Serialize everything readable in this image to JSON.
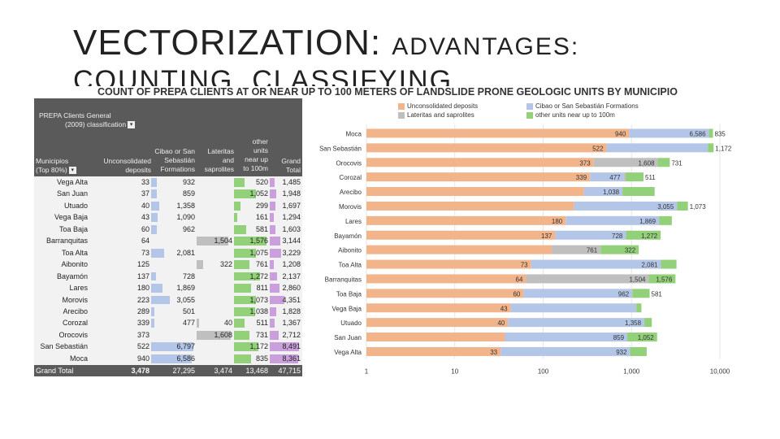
{
  "slide": {
    "title_line1_large": "VECTORIZATION:",
    "title_line1_small": "ADVANTAGES:",
    "title_line2": "COUNTING, CLASSIFYING,"
  },
  "colors": {
    "unconsolidated": "#f2b48a",
    "cibao": "#b4c6e7",
    "lateritas": "#bfbfbf",
    "other": "#93d07a",
    "grand": "#c9a0dc",
    "header_bg": "#5a5a5a"
  },
  "table": {
    "header": {
      "prepa_line1": "PREPA Clients General",
      "prepa_line2": "(2009) classification",
      "municipios_line1": "Municipios",
      "municipios_line2": "(Top 80%)",
      "unconsolidated_line1": "Unconsolidated",
      "unconsolidated_line2": "deposits",
      "cibao_line1": "Cibao or San",
      "cibao_line2": "Sebastián",
      "cibao_line3": "Formations",
      "lateritas_line1": "Lateritas",
      "lateritas_line2": "and",
      "lateritas_line3": "saprolites",
      "other_line1": "other",
      "other_line2": "units",
      "other_line3": "near up",
      "other_line4": "to 100m",
      "grand_line1": "Grand",
      "grand_line2": "Total"
    },
    "rows": [
      {
        "municipio": "Vega Alta",
        "unconsolidated": "33",
        "cibao": "932",
        "lateritas": "",
        "other": "520",
        "grand": "1,485"
      },
      {
        "municipio": "San Juan",
        "unconsolidated": "37",
        "cibao": "859",
        "lateritas": "",
        "other": "1,052",
        "grand": "1,948"
      },
      {
        "municipio": "Utuado",
        "unconsolidated": "40",
        "cibao": "1,358",
        "lateritas": "",
        "other": "299",
        "grand": "1,697"
      },
      {
        "municipio": "Vega Baja",
        "unconsolidated": "43",
        "cibao": "1,090",
        "lateritas": "",
        "other": "161",
        "grand": "1,294"
      },
      {
        "municipio": "Toa Baja",
        "unconsolidated": "60",
        "cibao": "962",
        "lateritas": "",
        "other": "581",
        "grand": "1,603"
      },
      {
        "municipio": "Barranquitas",
        "unconsolidated": "64",
        "cibao": "",
        "lateritas": "1,504",
        "other": "1,576",
        "grand": "3,144"
      },
      {
        "municipio": "Toa Alta",
        "unconsolidated": "73",
        "cibao": "2,081",
        "lateritas": "",
        "other": "1,075",
        "grand": "3,229"
      },
      {
        "municipio": "Aibonito",
        "unconsolidated": "125",
        "cibao": "",
        "lateritas": "322",
        "other": "761",
        "grand": "1,208"
      },
      {
        "municipio": "Bayamón",
        "unconsolidated": "137",
        "cibao": "728",
        "lateritas": "",
        "other": "1,272",
        "grand": "2,137"
      },
      {
        "municipio": "Lares",
        "unconsolidated": "180",
        "cibao": "1,869",
        "lateritas": "",
        "other": "811",
        "grand": "2,860"
      },
      {
        "municipio": "Morovis",
        "unconsolidated": "223",
        "cibao": "3,055",
        "lateritas": "",
        "other": "1,073",
        "grand": "4,351"
      },
      {
        "municipio": "Arecibo",
        "unconsolidated": "289",
        "cibao": "501",
        "lateritas": "",
        "other": "1,038",
        "grand": "1,828"
      },
      {
        "municipio": "Corozal",
        "unconsolidated": "339",
        "cibao": "477",
        "lateritas": "40",
        "other": "511",
        "grand": "1,367"
      },
      {
        "municipio": "Orocovis",
        "unconsolidated": "373",
        "cibao": "",
        "lateritas": "1,608",
        "other": "731",
        "grand": "2,712"
      },
      {
        "municipio": "San Sebastián",
        "unconsolidated": "522",
        "cibao": "6,797",
        "lateritas": "",
        "other": "1,172",
        "grand": "8,491"
      },
      {
        "municipio": "Moca",
        "unconsolidated": "940",
        "cibao": "6,586",
        "lateritas": "",
        "other": "835",
        "grand": "8,361"
      }
    ],
    "total": {
      "label": "Grand Total",
      "unconsolidated": "3,478",
      "cibao": "27,295",
      "lateritas": "3,474",
      "other": "13,468",
      "grand": "47,715"
    }
  },
  "chart_data": {
    "type": "bar",
    "orientation": "horizontal",
    "stacked": true,
    "title": "COUNT OF PREPA CLIENTS AT OR NEAR UP TO 100 METERS OF LANDSLIDE PRONE GEOLOGIC UNITS BY MUNICIPIO",
    "x_scale": "log",
    "xlim": [
      1,
      10000
    ],
    "x_ticks": [
      "1",
      "10",
      "100",
      "1,000",
      "10,000"
    ],
    "legend_position": "top",
    "categories": [
      "Moca",
      "San Sebastián",
      "Orocovis",
      "Corozal",
      "Arecibo",
      "Morovis",
      "Lares",
      "Bayamón",
      "Aibonito",
      "Toa Alta",
      "Barranquitas",
      "Toa Baja",
      "Vega Baja",
      "Utuado",
      "San Juan",
      "Vega Alta"
    ],
    "series": [
      {
        "name": "Unconsolidated deposits",
        "color": "#f2b48a",
        "values": [
          940,
          522,
          373,
          339,
          289,
          223,
          180,
          137,
          125,
          73,
          64,
          60,
          43,
          40,
          37,
          33
        ]
      },
      {
        "name": "Cibao or San Sebastián Formations",
        "color": "#b4c6e7",
        "values": [
          6586,
          6797,
          0,
          477,
          501,
          3055,
          1869,
          728,
          0,
          2081,
          0,
          962,
          1090,
          1358,
          859,
          932
        ]
      },
      {
        "name": "Lateritas and saprolites",
        "color": "#bfbfbf",
        "values": [
          0,
          0,
          1608,
          40,
          0,
          0,
          0,
          0,
          322,
          0,
          1504,
          0,
          0,
          0,
          0,
          0
        ]
      },
      {
        "name": "other units near up to 100m",
        "color": "#93d07a",
        "values": [
          835,
          1172,
          731,
          511,
          1038,
          1073,
          811,
          1272,
          761,
          1075,
          1576,
          581,
          161,
          299,
          1052,
          520
        ]
      }
    ],
    "data_labels": [
      [
        "940",
        "6,586",
        "",
        "835"
      ],
      [
        "522",
        "",
        "",
        "1,172"
      ],
      [
        "373",
        "",
        "1,608",
        "731"
      ],
      [
        "339",
        "477",
        "",
        "511"
      ],
      [
        "",
        "1,038",
        "",
        ""
      ],
      [
        "",
        "3,055",
        "",
        "1,073"
      ],
      [
        "180",
        "1,869",
        "",
        ""
      ],
      [
        "137",
        "728",
        "",
        "1,272"
      ],
      [
        "",
        "322",
        "761",
        ""
      ],
      [
        "73",
        "2,081",
        "",
        ""
      ],
      [
        "64",
        "",
        "1,504",
        "1,576"
      ],
      [
        "60",
        "962",
        "",
        "581"
      ],
      [
        "43",
        "",
        "",
        ""
      ],
      [
        "40",
        "1,358",
        "",
        ""
      ],
      [
        "",
        "859",
        "",
        "1,052"
      ],
      [
        "33",
        "932",
        "",
        ""
      ]
    ]
  }
}
